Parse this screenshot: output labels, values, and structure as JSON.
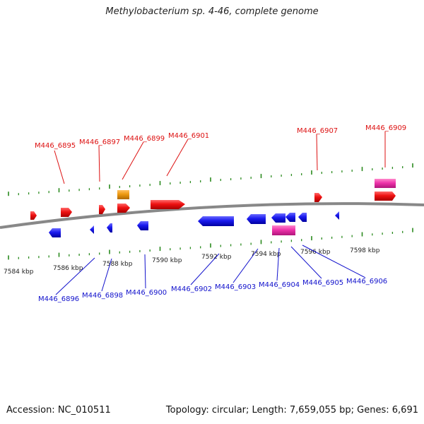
{
  "title": "Methylobacterium sp. 4-46, complete genome",
  "footer": {
    "accession": "Accession: NC_010511",
    "summary": "Topology: circular; Length: 7,659,055 bp; Genes: 6,691"
  },
  "colors": {
    "forward_gene": "#ee1111",
    "reverse_gene": "#1a1aee",
    "rrna_gene": "#ee33aa",
    "other_gene": "#ee9911",
    "backbone": "#888888",
    "tick": "#2a8a1e",
    "forward_label": "#dd1111",
    "reverse_label": "#1111cc"
  },
  "axis": {
    "ticks": [
      "7584 kbp",
      "7586 kbp",
      "7588 kbp",
      "7590 kbp",
      "7592 kbp",
      "7594 kbp",
      "7596 kbp",
      "7598 kbp"
    ]
  },
  "genes": {
    "forward": [
      "M446_6895",
      "M446_6897",
      "M446_6899",
      "M446_6901",
      "M446_6907",
      "M446_6909"
    ],
    "reverse": [
      "M446_6896",
      "M446_6898",
      "M446_6900",
      "M446_6902",
      "M446_6903",
      "M446_6904",
      "M446_6905",
      "M446_6906"
    ]
  }
}
